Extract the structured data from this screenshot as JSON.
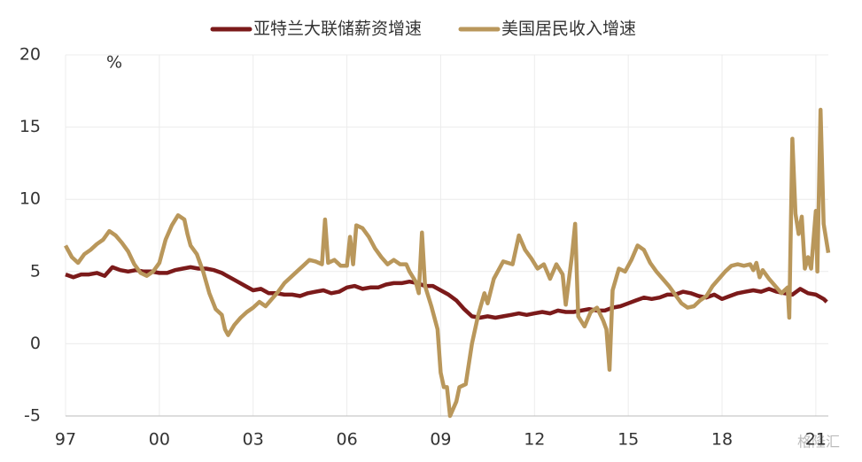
{
  "chart_data": {
    "type": "line",
    "annotation": "%",
    "watermark": "格隆汇",
    "xlim": [
      1997,
      2021.4
    ],
    "xticks": [
      {
        "value": 1997,
        "label": "97"
      },
      {
        "value": 2000,
        "label": "00"
      },
      {
        "value": 2003,
        "label": "03"
      },
      {
        "value": 2006,
        "label": "06"
      },
      {
        "value": 2009,
        "label": "09"
      },
      {
        "value": 2012,
        "label": "12"
      },
      {
        "value": 2015,
        "label": "15"
      },
      {
        "value": 2018,
        "label": "18"
      },
      {
        "value": 2021,
        "label": "21"
      }
    ],
    "ylim": [
      -5,
      20
    ],
    "yticks": [
      -5,
      0,
      5,
      10,
      15,
      20
    ],
    "grid": true,
    "legend": "top",
    "series": [
      {
        "name": "亚特兰大联储薪资增速",
        "color": "#7b1a1a",
        "x": [
          1997,
          1997.25,
          1997.5,
          1997.75,
          1998,
          1998.25,
          1998.5,
          1998.75,
          1999,
          1999.25,
          1999.5,
          1999.75,
          2000,
          2000.25,
          2000.5,
          2000.75,
          2001,
          2001.25,
          2001.5,
          2001.75,
          2002,
          2002.25,
          2002.5,
          2002.75,
          2003,
          2003.25,
          2003.5,
          2003.75,
          2004,
          2004.25,
          2004.5,
          2004.75,
          2005,
          2005.25,
          2005.5,
          2005.75,
          2006,
          2006.25,
          2006.5,
          2006.75,
          2007,
          2007.25,
          2007.5,
          2007.75,
          2008,
          2008.25,
          2008.5,
          2008.75,
          2009,
          2009.25,
          2009.5,
          2009.75,
          2010,
          2010.25,
          2010.5,
          2010.75,
          2011,
          2011.25,
          2011.5,
          2011.75,
          2012,
          2012.25,
          2012.5,
          2012.75,
          2013,
          2013.25,
          2013.5,
          2013.75,
          2014,
          2014.25,
          2014.5,
          2014.75,
          2015,
          2015.25,
          2015.5,
          2015.75,
          2016,
          2016.25,
          2016.5,
          2016.75,
          2017,
          2017.25,
          2017.5,
          2017.75,
          2018,
          2018.25,
          2018.5,
          2018.75,
          2019,
          2019.25,
          2019.5,
          2019.75,
          2020,
          2020.25,
          2020.5,
          2020.75,
          2021,
          2021.25,
          2021.35
        ],
        "values": [
          4.8,
          4.6,
          4.8,
          4.8,
          4.9,
          4.7,
          5.3,
          5.1,
          5.0,
          5.1,
          5.0,
          5.0,
          4.9,
          4.9,
          5.1,
          5.2,
          5.3,
          5.2,
          5.2,
          5.1,
          4.9,
          4.6,
          4.3,
          4.0,
          3.7,
          3.8,
          3.5,
          3.5,
          3.4,
          3.4,
          3.3,
          3.5,
          3.6,
          3.7,
          3.5,
          3.6,
          3.9,
          4.0,
          3.8,
          3.9,
          3.9,
          4.1,
          4.2,
          4.2,
          4.3,
          4.2,
          4.0,
          4.0,
          3.7,
          3.4,
          3.0,
          2.4,
          1.9,
          1.8,
          1.9,
          1.8,
          1.9,
          2.0,
          2.1,
          2.0,
          2.1,
          2.2,
          2.1,
          2.3,
          2.2,
          2.2,
          2.3,
          2.4,
          2.3,
          2.3,
          2.5,
          2.6,
          2.8,
          3.0,
          3.2,
          3.1,
          3.2,
          3.4,
          3.4,
          3.6,
          3.5,
          3.3,
          3.2,
          3.4,
          3.1,
          3.3,
          3.5,
          3.6,
          3.7,
          3.6,
          3.8,
          3.6,
          3.5,
          3.4,
          3.8,
          3.5,
          3.4,
          3.1,
          2.9
        ]
      },
      {
        "name": "美国居民收入增速",
        "color": "#b9975b",
        "x": [
          1997,
          1997.2,
          1997.4,
          1997.6,
          1997.8,
          1998,
          1998.2,
          1998.4,
          1998.6,
          1998.8,
          1999,
          1999.2,
          1999.4,
          1999.6,
          1999.8,
          2000,
          2000.2,
          2000.4,
          2000.6,
          2000.8,
          2000.9,
          2001,
          2001.2,
          2001.4,
          2001.6,
          2001.8,
          2002,
          2002.1,
          2002.2,
          2002.4,
          2002.6,
          2002.8,
          2003,
          2003.2,
          2003.4,
          2003.6,
          2003.8,
          2004,
          2004.2,
          2004.4,
          2004.6,
          2004.8,
          2005,
          2005.2,
          2005.3,
          2005.4,
          2005.6,
          2005.8,
          2006,
          2006.1,
          2006.2,
          2006.3,
          2006.5,
          2006.7,
          2006.9,
          2007.1,
          2007.3,
          2007.5,
          2007.7,
          2007.9,
          2008,
          2008.2,
          2008.3,
          2008.4,
          2008.5,
          2008.7,
          2008.9,
          2009,
          2009.1,
          2009.2,
          2009.3,
          2009.5,
          2009.6,
          2009.8,
          2010,
          2010.2,
          2010.4,
          2010.5,
          2010.7,
          2011,
          2011.3,
          2011.5,
          2011.7,
          2011.9,
          2012.1,
          2012.3,
          2012.5,
          2012.7,
          2012.9,
          2013,
          2013.2,
          2013.3,
          2013.4,
          2013.6,
          2013.8,
          2014,
          2014.2,
          2014.3,
          2014.4,
          2014.5,
          2014.7,
          2014.9,
          2015.1,
          2015.3,
          2015.5,
          2015.7,
          2015.9,
          2016.1,
          2016.3,
          2016.5,
          2016.7,
          2016.9,
          2017.1,
          2017.3,
          2017.5,
          2017.7,
          2017.9,
          2018.1,
          2018.3,
          2018.5,
          2018.7,
          2018.9,
          2019,
          2019.1,
          2019.2,
          2019.3,
          2019.5,
          2019.7,
          2019.9,
          2020.1,
          2020.15,
          2020.25,
          2020.35,
          2020.45,
          2020.55,
          2020.65,
          2020.75,
          2020.85,
          2021,
          2021.05,
          2021.15,
          2021.25,
          2021.4
        ],
        "values": [
          6.8,
          6.0,
          5.6,
          6.2,
          6.5,
          6.9,
          7.2,
          7.8,
          7.5,
          7.0,
          6.4,
          5.5,
          4.9,
          4.7,
          5.0,
          5.6,
          7.2,
          8.2,
          8.9,
          8.6,
          7.6,
          6.8,
          6.2,
          5.0,
          3.5,
          2.4,
          2.0,
          1.0,
          0.6,
          1.3,
          1.8,
          2.2,
          2.5,
          2.9,
          2.6,
          3.1,
          3.6,
          4.2,
          4.6,
          5.0,
          5.4,
          5.8,
          5.7,
          5.5,
          8.6,
          5.6,
          5.8,
          5.4,
          5.4,
          7.4,
          5.5,
          8.2,
          8.0,
          7.4,
          6.6,
          6.0,
          5.5,
          5.8,
          5.5,
          5.5,
          5.0,
          4.3,
          3.5,
          7.7,
          4.0,
          2.6,
          1.0,
          -2.0,
          -3.0,
          -3.0,
          -5.0,
          -4.0,
          -3.0,
          -2.8,
          0,
          2.0,
          3.5,
          2.8,
          4.5,
          5.7,
          5.5,
          7.5,
          6.5,
          5.9,
          5.2,
          5.5,
          4.5,
          5.5,
          4.8,
          2.7,
          6.1,
          8.3,
          1.9,
          1.2,
          2.2,
          2.5,
          1.6,
          1.0,
          -1.8,
          3.7,
          5.2,
          5.0,
          5.8,
          6.8,
          6.5,
          5.6,
          5.0,
          4.5,
          4.0,
          3.4,
          2.8,
          2.5,
          2.6,
          3.0,
          3.3,
          4.0,
          4.5,
          5.0,
          5.4,
          5.5,
          5.4,
          5.5,
          5.1,
          5.6,
          4.6,
          5.1,
          4.5,
          4.0,
          3.5,
          3.9,
          1.8,
          14.2,
          9.0,
          7.6,
          8.8,
          5.2,
          6.0,
          5.2,
          9.2,
          5.0,
          16.2,
          8.3,
          6.3
        ]
      }
    ]
  }
}
